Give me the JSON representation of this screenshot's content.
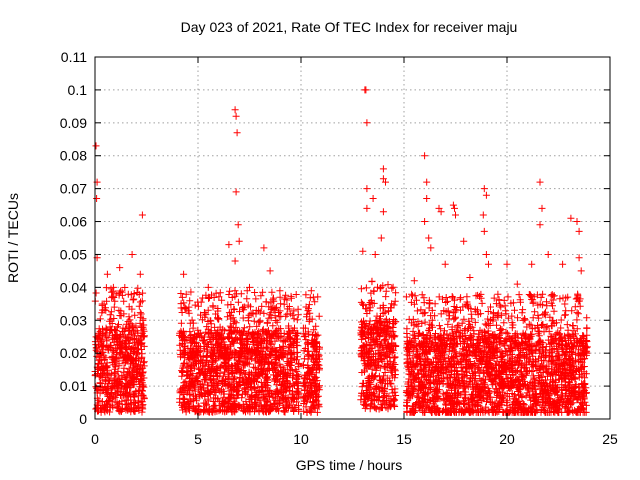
{
  "chart_data": {
    "type": "scatter",
    "title": "Day 023 of 2021, Rate Of TEC Index for receiver maju",
    "xlabel": "GPS time / hours",
    "ylabel": "ROTI / TECUs",
    "xlim": [
      0,
      25
    ],
    "ylim": [
      0,
      0.11
    ],
    "x_ticks": [
      0,
      5,
      10,
      15,
      20,
      25
    ],
    "x_tick_labels": [
      "0",
      "5",
      "10",
      "15",
      "20",
      "25"
    ],
    "y_ticks": [
      0,
      0.01,
      0.02,
      0.03,
      0.04,
      0.05,
      0.06,
      0.07,
      0.08,
      0.09,
      0.1,
      0.11
    ],
    "y_tick_labels": [
      "0",
      "0.01",
      "0.02",
      "0.03",
      "0.04",
      "0.05",
      "0.06",
      "0.07",
      "0.08",
      "0.09",
      "0.1",
      "0.11"
    ],
    "grid": true,
    "marker": "+",
    "series_color": "#ff0000",
    "segments": [
      {
        "x_range": [
          0.0,
          2.4
        ],
        "core": [
          0.004,
          0.028
        ]
      },
      {
        "x_range": [
          4.1,
          9.9
        ],
        "core": [
          0.004,
          0.027
        ]
      },
      {
        "x_range": [
          10.1,
          10.9
        ],
        "core": [
          0.003,
          0.026
        ]
      },
      {
        "x_range": [
          12.9,
          14.6
        ],
        "core": [
          0.005,
          0.03
        ]
      },
      {
        "x_range": [
          15.1,
          23.9
        ],
        "core": [
          0.003,
          0.026
        ]
      }
    ],
    "outliers": [
      {
        "x": 0.05,
        "y": 0.083
      },
      {
        "x": 0.1,
        "y": 0.072
      },
      {
        "x": 0.08,
        "y": 0.067
      },
      {
        "x": 0.1,
        "y": 0.049
      },
      {
        "x": 0.6,
        "y": 0.044
      },
      {
        "x": 1.2,
        "y": 0.046
      },
      {
        "x": 1.8,
        "y": 0.05
      },
      {
        "x": 2.3,
        "y": 0.062
      },
      {
        "x": 2.2,
        "y": 0.044
      },
      {
        "x": 4.3,
        "y": 0.044
      },
      {
        "x": 6.5,
        "y": 0.053
      },
      {
        "x": 6.8,
        "y": 0.094
      },
      {
        "x": 6.85,
        "y": 0.092
      },
      {
        "x": 6.9,
        "y": 0.087
      },
      {
        "x": 6.85,
        "y": 0.069
      },
      {
        "x": 6.95,
        "y": 0.059
      },
      {
        "x": 7.0,
        "y": 0.054
      },
      {
        "x": 6.8,
        "y": 0.048
      },
      {
        "x": 8.2,
        "y": 0.052
      },
      {
        "x": 8.5,
        "y": 0.045
      },
      {
        "x": 10.5,
        "y": 0.039
      },
      {
        "x": 10.6,
        "y": 0.037
      },
      {
        "x": 13.1,
        "y": 0.1
      },
      {
        "x": 13.15,
        "y": 0.1
      },
      {
        "x": 13.2,
        "y": 0.09
      },
      {
        "x": 13.2,
        "y": 0.07
      },
      {
        "x": 13.5,
        "y": 0.067
      },
      {
        "x": 13.2,
        "y": 0.064
      },
      {
        "x": 13.0,
        "y": 0.051
      },
      {
        "x": 14.0,
        "y": 0.076
      },
      {
        "x": 14.0,
        "y": 0.073
      },
      {
        "x": 14.1,
        "y": 0.072
      },
      {
        "x": 14.0,
        "y": 0.063
      },
      {
        "x": 13.9,
        "y": 0.055
      },
      {
        "x": 13.6,
        "y": 0.05
      },
      {
        "x": 16.0,
        "y": 0.08
      },
      {
        "x": 16.1,
        "y": 0.072
      },
      {
        "x": 16.1,
        "y": 0.067
      },
      {
        "x": 16.0,
        "y": 0.06
      },
      {
        "x": 16.2,
        "y": 0.055
      },
      {
        "x": 16.7,
        "y": 0.064
      },
      {
        "x": 16.8,
        "y": 0.063
      },
      {
        "x": 17.4,
        "y": 0.065
      },
      {
        "x": 17.45,
        "y": 0.064
      },
      {
        "x": 17.5,
        "y": 0.062
      },
      {
        "x": 17.9,
        "y": 0.054
      },
      {
        "x": 16.3,
        "y": 0.052
      },
      {
        "x": 18.9,
        "y": 0.07
      },
      {
        "x": 19.0,
        "y": 0.068
      },
      {
        "x": 18.85,
        "y": 0.062
      },
      {
        "x": 18.9,
        "y": 0.057
      },
      {
        "x": 19.0,
        "y": 0.05
      },
      {
        "x": 19.1,
        "y": 0.047
      },
      {
        "x": 21.6,
        "y": 0.072
      },
      {
        "x": 21.7,
        "y": 0.064
      },
      {
        "x": 21.6,
        "y": 0.059
      },
      {
        "x": 21.2,
        "y": 0.047
      },
      {
        "x": 22.0,
        "y": 0.05
      },
      {
        "x": 22.7,
        "y": 0.047
      },
      {
        "x": 23.1,
        "y": 0.061
      },
      {
        "x": 23.4,
        "y": 0.06
      },
      {
        "x": 23.5,
        "y": 0.057
      },
      {
        "x": 23.5,
        "y": 0.049
      },
      {
        "x": 23.6,
        "y": 0.045
      },
      {
        "x": 20.0,
        "y": 0.047
      },
      {
        "x": 20.5,
        "y": 0.041
      },
      {
        "x": 15.5,
        "y": 0.042
      },
      {
        "x": 17.0,
        "y": 0.047
      },
      {
        "x": 18.2,
        "y": 0.043
      },
      {
        "x": 9.5,
        "y": 0.032
      },
      {
        "x": 5.5,
        "y": 0.04
      },
      {
        "x": 7.5,
        "y": 0.04
      }
    ]
  }
}
